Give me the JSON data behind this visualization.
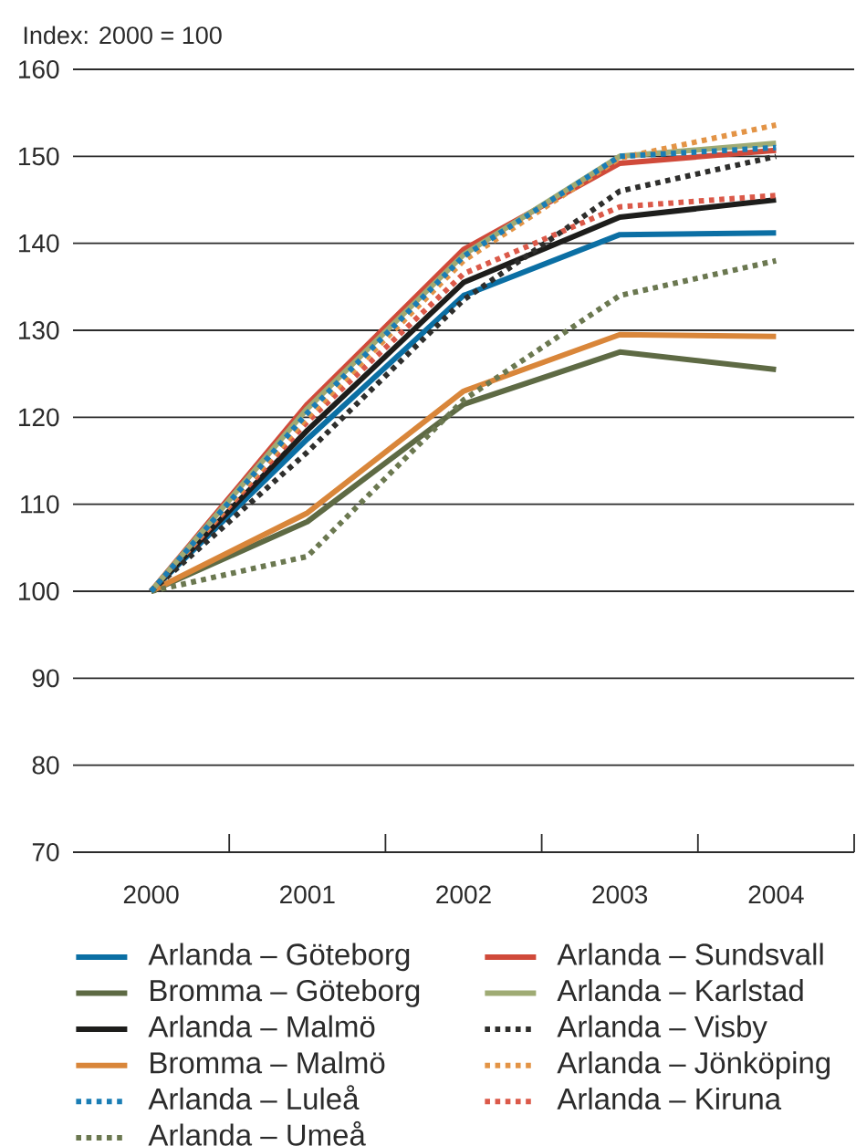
{
  "chart_data": {
    "type": "line",
    "ylabel": "Index: 2000 = 100",
    "categories": [
      "2000",
      "2001",
      "2002",
      "2003",
      "2004"
    ],
    "ylim": [
      70,
      160
    ],
    "yticks": [
      70,
      80,
      90,
      100,
      110,
      120,
      130,
      140,
      150,
      160
    ],
    "grid": "y",
    "legend": "bottom",
    "series": [
      {
        "name": "Arlanda – Göteborg",
        "color": "#0b6fa4",
        "line_style": "solid",
        "values": [
          100,
          117.5,
          134,
          141,
          141.2
        ]
      },
      {
        "name": "Bromma – Göteborg",
        "color": "#5e6a44",
        "line_style": "solid",
        "values": [
          100,
          108,
          121.5,
          127.5,
          125.5
        ]
      },
      {
        "name": "Arlanda – Malmö",
        "color": "#1d1d1b",
        "line_style": "solid",
        "values": [
          100,
          118.5,
          135.5,
          143,
          145
        ]
      },
      {
        "name": "Bromma – Malmö",
        "color": "#d9863a",
        "line_style": "solid",
        "values": [
          100,
          109,
          123,
          129.5,
          129.3
        ]
      },
      {
        "name": "Arlanda – Luleå",
        "color": "#1a7db5",
        "line_style": "dotted",
        "values": [
          100,
          120.5,
          138.5,
          150,
          151
        ]
      },
      {
        "name": "Arlanda – Umeå",
        "color": "#6b7850",
        "line_style": "dotted",
        "values": [
          100,
          104,
          122,
          134,
          138
        ]
      },
      {
        "name": "Arlanda – Sundsvall",
        "color": "#d04a3a",
        "line_style": "solid",
        "values": [
          100,
          121.5,
          139.3,
          149.2,
          150.7
        ]
      },
      {
        "name": "Arlanda – Karlstad",
        "color": "#9fab74",
        "line_style": "solid",
        "values": [
          100,
          121,
          138.7,
          150,
          151.5
        ]
      },
      {
        "name": "Arlanda – Visby",
        "color": "#2e2e2c",
        "line_style": "dotted",
        "values": [
          100,
          116,
          133.5,
          146,
          150
        ]
      },
      {
        "name": "Arlanda – Jönköping",
        "color": "#e39446",
        "line_style": "dotted",
        "values": [
          100,
          120,
          138,
          149.8,
          153.6
        ]
      },
      {
        "name": "Arlanda – Kiruna",
        "color": "#db5949",
        "line_style": "dotted",
        "values": [
          100,
          119.5,
          136.5,
          144.2,
          145.5
        ]
      }
    ]
  }
}
